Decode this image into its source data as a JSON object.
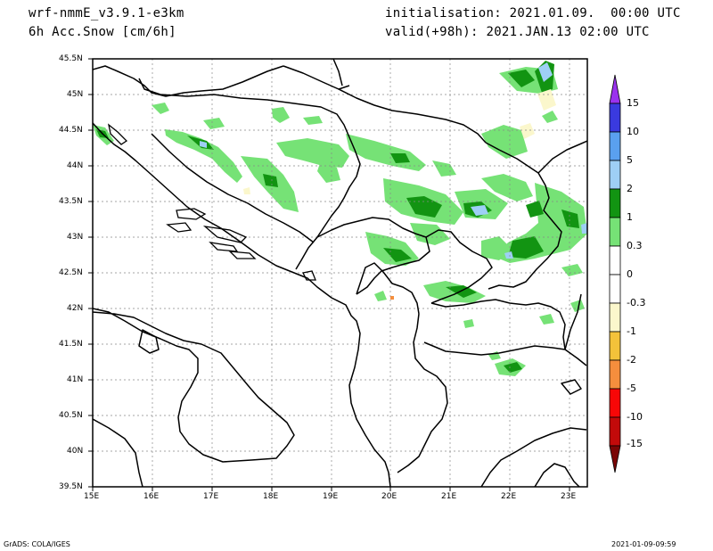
{
  "header": {
    "model": "wrf-nmmE_v3.9.1-e3km",
    "field": "6h Acc.Snow [cm/6h]",
    "init": "initialisation: 2021.01.09.  00:00 UTC",
    "valid": "valid(+98h): 2021.JAN.13 02:00 UTC"
  },
  "map": {
    "lon_range": [
      15,
      23.3
    ],
    "lat_range": [
      39.5,
      45.5
    ],
    "lon_ticks": [
      "15E",
      "16E",
      "17E",
      "18E",
      "19E",
      "20E",
      "21E",
      "22E",
      "23E"
    ],
    "lat_ticks": [
      "45.5N",
      "45N",
      "44.5N",
      "44N",
      "43.5N",
      "43N",
      "42.5N",
      "42N",
      "41.5N",
      "41N",
      "40.5N",
      "40N",
      "39.5N"
    ],
    "grid": true
  },
  "colorbar": {
    "labels": [
      "15",
      "10",
      "5",
      "2",
      "1",
      "0.3",
      "0",
      "-0.3",
      "-1",
      "-2",
      "-5",
      "-10",
      "-15"
    ],
    "colors": [
      "#3a3adf",
      "#5aa0ef",
      "#9ecff5",
      "#129412",
      "#76e276",
      "#ffffff",
      "#ffffff",
      "#fbf7cc",
      "#f3c23a",
      "#f58e3d",
      "#f70707",
      "#c20a0a",
      "#8a0b0b"
    ],
    "top_color": "#9a32ee",
    "bottom_color": "#7a0505"
  },
  "footer": {
    "left": "GrADS: COLA/IGES",
    "right": "2021-01-09-09:59"
  }
}
